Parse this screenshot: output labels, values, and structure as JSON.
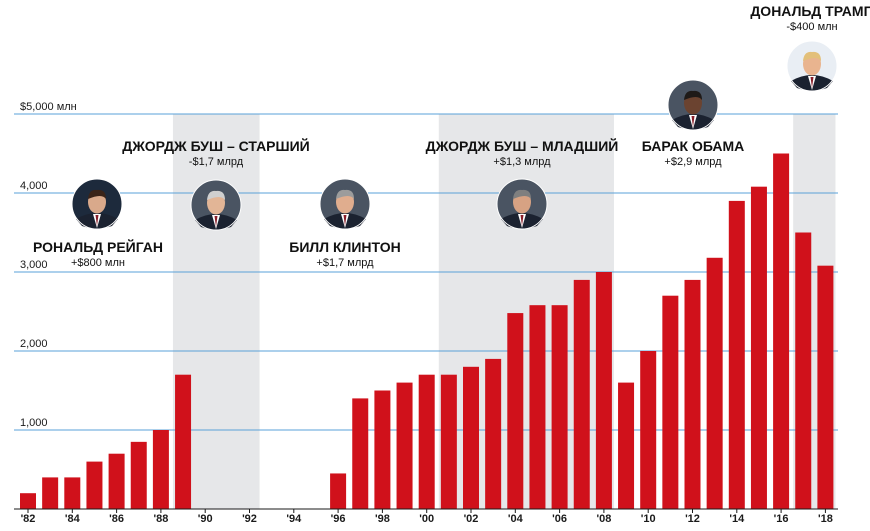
{
  "chart_data": {
    "type": "bar",
    "ylim": [
      0,
      5000
    ],
    "y_ticks": [
      {
        "value": 1000,
        "label": "1,000"
      },
      {
        "value": 2000,
        "label": "2,000"
      },
      {
        "value": 3000,
        "label": "3,000"
      },
      {
        "value": 4000,
        "label": "4,000"
      },
      {
        "value": 5000,
        "label": "$5,000 млн"
      }
    ],
    "grid": true,
    "colors": {
      "bar": "#d0111b",
      "grid": "#5aa0d8",
      "shade": "#e6e7e9",
      "axis": "#1a1a1a"
    },
    "x_ticks": [
      "'82",
      "'84",
      "'86",
      "'88",
      "'90",
      "'92",
      "'94",
      "'96",
      "'98",
      "'00",
      "'02",
      "'04",
      "'06",
      "'08",
      "'10",
      "'12",
      "'14",
      "'16",
      "'18"
    ],
    "years": [
      1982,
      1983,
      1984,
      1985,
      1986,
      1987,
      1988,
      1989,
      1990,
      1991,
      1992,
      1993,
      1994,
      1995,
      1996,
      1997,
      1998,
      1999,
      2000,
      2001,
      2002,
      2003,
      2004,
      2005,
      2006,
      2007,
      2008,
      2009,
      2010,
      2011,
      2012,
      2013,
      2014,
      2015,
      2016,
      2017,
      2018
    ],
    "values": [
      200,
      400,
      400,
      600,
      700,
      850,
      1000,
      1700,
      0,
      0,
      0,
      0,
      0,
      0,
      450,
      1400,
      1500,
      1600,
      1700,
      1700,
      1800,
      1900,
      2480,
      2580,
      2580,
      2900,
      3000,
      1600,
      2000,
      2700,
      2900,
      3180,
      3900,
      4080,
      4500,
      3500,
      3080
    ],
    "presidencies": [
      {
        "name": "РОНАЛЬД РЕЙГАН",
        "change": "+$800 млн",
        "icon": "reagan-portrait-icon",
        "start": 1982,
        "end": 1988,
        "shaded": false
      },
      {
        "name": "ДЖОРДЖ БУШ – СТАРШИЙ",
        "change": "-$1,7 млрд",
        "icon": "bush-sr-portrait-icon",
        "start": 1989,
        "end": 1992,
        "shaded": true
      },
      {
        "name": "БИЛЛ КЛИНТОН",
        "change": "+$1,7 млрд",
        "icon": "clinton-portrait-icon",
        "start": 1993,
        "end": 2000,
        "shaded": false
      },
      {
        "name": "ДЖОРДЖ БУШ – МЛАДШИЙ",
        "change": "+$1,3 млрд",
        "icon": "bush-jr-portrait-icon",
        "start": 2001,
        "end": 2008,
        "shaded": true
      },
      {
        "name": "БАРАК ОБАМА",
        "change": "+$2,9 млрд",
        "icon": "obama-portrait-icon",
        "start": 2009,
        "end": 2016,
        "shaded": false
      },
      {
        "name": "ДОНАЛЬД ТРАМП",
        "change": "-$400 млн",
        "icon": "trump-portrait-icon",
        "start": 2017,
        "end": 2018,
        "shaded": true
      }
    ]
  }
}
